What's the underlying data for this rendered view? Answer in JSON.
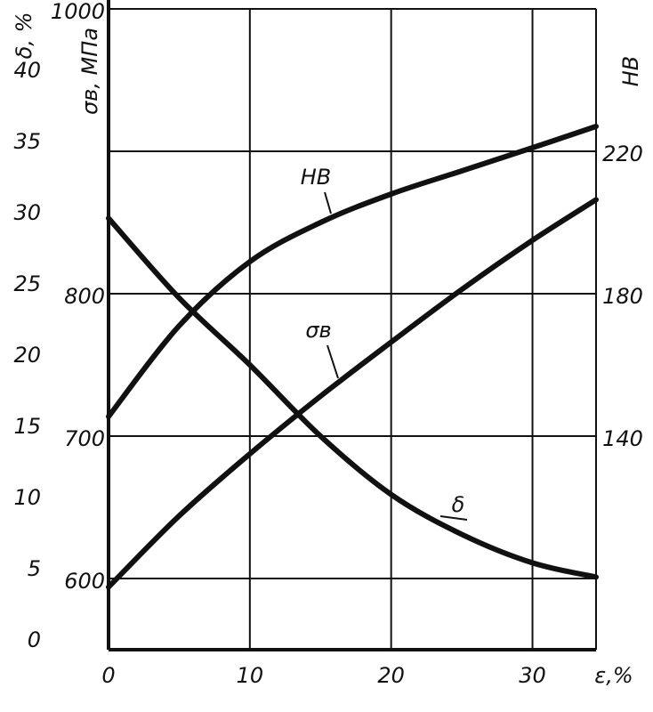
{
  "chart_data": {
    "type": "line",
    "x": [
      0,
      5,
      10,
      15,
      20,
      25,
      30,
      34.5
    ],
    "xlim": [
      0,
      34.5
    ],
    "xticks": [
      0,
      10,
      20,
      30
    ],
    "xlabel": "ε,%",
    "ylabel": "δ, %",
    "ylim": [
      0,
      45
    ],
    "yticks": [
      0,
      5,
      10,
      15,
      20,
      25,
      30,
      35,
      40
    ],
    "y2label": "σв, МПа",
    "y2lim": [
      550,
      1000
    ],
    "y2ticks": [
      600,
      700,
      800,
      1000
    ],
    "y3label": "HB",
    "y3lim": [
      80,
      260
    ],
    "y3ticks": [
      140,
      180,
      220
    ],
    "grid": true,
    "series": [
      {
        "name": "HB",
        "axis": "y3",
        "color": "#111",
        "values": [
          145.5,
          171,
          189,
          200,
          208,
          214.5,
          221,
          227
        ]
      },
      {
        "name": "σв",
        "axis": "y2",
        "color": "#111",
        "values": [
          594,
          644,
          687.5,
          728,
          766,
          803,
          837.5,
          866
        ]
      },
      {
        "name": "δ",
        "axis": "y",
        "color": "#111",
        "values": [
          30.3,
          24.7,
          20,
          15,
          10.9,
          8.1,
          6.1,
          5.1
        ]
      }
    ]
  }
}
